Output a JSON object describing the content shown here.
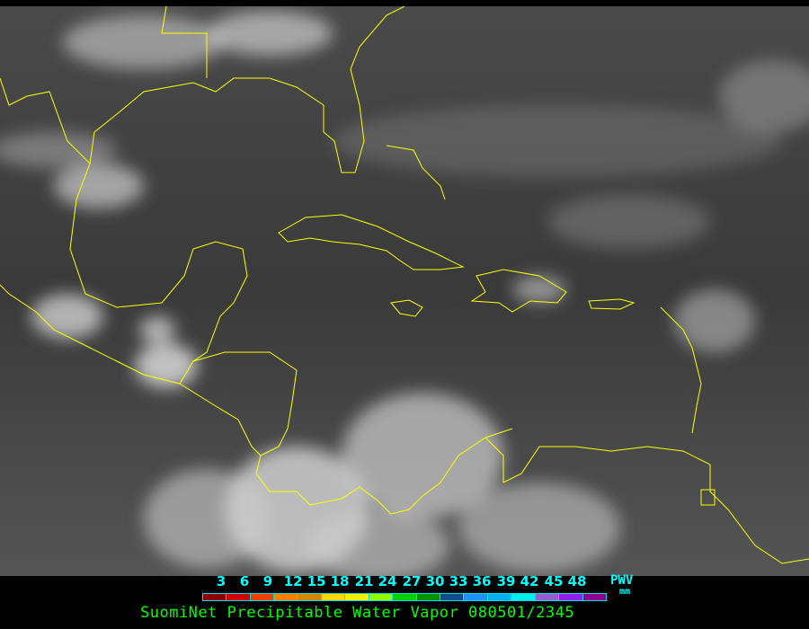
{
  "legend": {
    "ticks": [
      "3",
      "6",
      "9",
      "12",
      "15",
      "18",
      "21",
      "24",
      "27",
      "30",
      "33",
      "36",
      "39",
      "42",
      "45",
      "48"
    ],
    "unit_label": "PWV",
    "unit": "mm",
    "colors": [
      "#8b0000",
      "#d00000",
      "#f04000",
      "#ff8000",
      "#d08800",
      "#ffd800",
      "#f0f000",
      "#90ff00",
      "#00d000",
      "#009000",
      "#104e8b",
      "#1e90ff",
      "#00b0f0",
      "#00f0f0",
      "#9060d0",
      "#9020f0",
      "#900090"
    ]
  },
  "title": "SuomiNet Precipitable Water Vapor 080501/2345",
  "colors": {
    "coastline": "#ffff00",
    "text_cyan": "#00ffff",
    "title_green": "#00ff00"
  }
}
